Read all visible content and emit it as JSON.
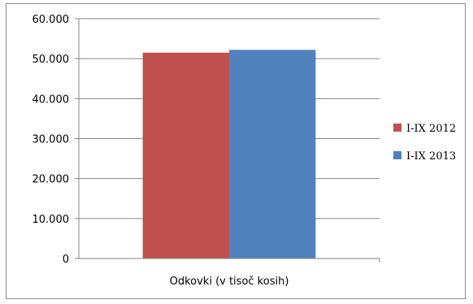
{
  "chart_data": {
    "type": "bar",
    "title": "",
    "xlabel": "",
    "ylabel": "",
    "categories": [
      "Odkovki (v tisoč kosih)"
    ],
    "series": [
      {
        "name": "I-IX 2012",
        "values": [
          51500
        ],
        "color": "#c0504d"
      },
      {
        "name": "I-IX 2013",
        "values": [
          52200
        ],
        "color": "#4f81bd"
      }
    ],
    "ylim": [
      0,
      60000
    ],
    "yticks": [
      0,
      10000,
      20000,
      30000,
      40000,
      50000,
      60000
    ],
    "ytick_labels": [
      "0",
      "10.000",
      "20.000",
      "30.000",
      "40.000",
      "50.000",
      "60.000"
    ],
    "grid": true,
    "legend_position": "right"
  }
}
